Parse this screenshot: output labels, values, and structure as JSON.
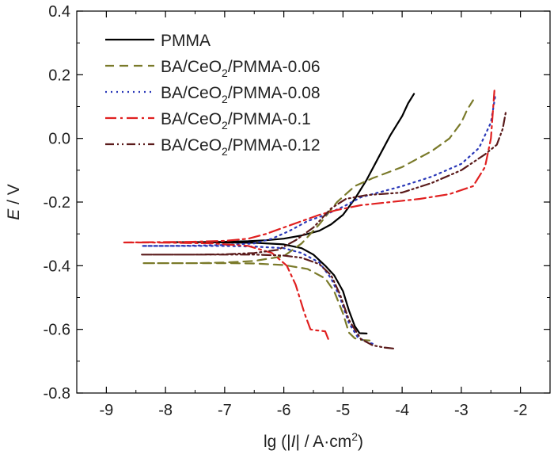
{
  "chart_data": {
    "type": "line",
    "title": "",
    "xlabel": "lg (|I| / A·cm²)",
    "ylabel": "E / V",
    "xlim": [
      -9.5,
      -1.5
    ],
    "ylim": [
      -0.8,
      0.4
    ],
    "x_ticks": [
      -9,
      -8,
      -7,
      -6,
      -5,
      -4,
      -3,
      -2
    ],
    "y_ticks": [
      0.4,
      0.2,
      0.0,
      -0.2,
      -0.4,
      -0.6,
      -0.8
    ],
    "x_tick_labels": [
      "-9",
      "-8",
      "-7",
      "-6",
      "-5",
      "-4",
      "-3",
      "-2"
    ],
    "y_tick_labels": [
      "0.4",
      "0.2",
      "0.0",
      "-0.2",
      "-0.4",
      "-0.6",
      "-0.8"
    ],
    "grid": false,
    "legend_position": "top-left",
    "series": [
      {
        "name": "PMMA",
        "color": "#000000",
        "dash": "solid",
        "points": [
          [
            -4.6,
            -0.613
          ],
          [
            -4.72,
            -0.612
          ],
          [
            -4.8,
            -0.59
          ],
          [
            -4.9,
            -0.54
          ],
          [
            -5.0,
            -0.48
          ],
          [
            -5.15,
            -0.43
          ],
          [
            -5.3,
            -0.4
          ],
          [
            -5.5,
            -0.365
          ],
          [
            -5.7,
            -0.345
          ],
          [
            -6.0,
            -0.333
          ],
          [
            -6.5,
            -0.328
          ],
          [
            -7.0,
            -0.327
          ],
          [
            -7.5,
            -0.326
          ],
          [
            -8.0,
            -0.326
          ],
          [
            -7.5,
            -0.326
          ],
          [
            -7.0,
            -0.325
          ],
          [
            -6.6,
            -0.323
          ],
          [
            -6.3,
            -0.32
          ],
          [
            -6.0,
            -0.315
          ],
          [
            -5.7,
            -0.305
          ],
          [
            -5.4,
            -0.29
          ],
          [
            -5.2,
            -0.27
          ],
          [
            -5.0,
            -0.24
          ],
          [
            -4.8,
            -0.19
          ],
          [
            -4.6,
            -0.13
          ],
          [
            -4.4,
            -0.06
          ],
          [
            -4.2,
            0.01
          ],
          [
            -4.0,
            0.07
          ],
          [
            -3.9,
            0.11
          ],
          [
            -3.8,
            0.14
          ]
        ]
      },
      {
        "name": "BA/CeO2/PMMA-0.06",
        "name_main": "BA/CeO",
        "name_sub": "2",
        "name_tail": "/PMMA-0.06",
        "color": "#7a7a2a",
        "dash": "11,7",
        "points": [
          [
            -4.55,
            -0.635
          ],
          [
            -4.7,
            -0.633
          ],
          [
            -4.8,
            -0.628
          ],
          [
            -4.9,
            -0.61
          ],
          [
            -5.0,
            -0.55
          ],
          [
            -5.15,
            -0.48
          ],
          [
            -5.3,
            -0.44
          ],
          [
            -5.6,
            -0.41
          ],
          [
            -6.0,
            -0.398
          ],
          [
            -6.5,
            -0.393
          ],
          [
            -7.0,
            -0.392
          ],
          [
            -7.5,
            -0.392
          ],
          [
            -8.0,
            -0.392
          ],
          [
            -8.4,
            -0.392
          ],
          [
            -8.0,
            -0.392
          ],
          [
            -7.5,
            -0.392
          ],
          [
            -7.0,
            -0.39
          ],
          [
            -6.5,
            -0.385
          ],
          [
            -6.0,
            -0.37
          ],
          [
            -5.7,
            -0.33
          ],
          [
            -5.4,
            -0.27
          ],
          [
            -5.1,
            -0.2
          ],
          [
            -4.8,
            -0.15
          ],
          [
            -4.5,
            -0.125
          ],
          [
            -4.0,
            -0.09
          ],
          [
            -3.5,
            -0.04
          ],
          [
            -3.2,
            0.0
          ],
          [
            -3.0,
            0.05
          ],
          [
            -2.9,
            0.09
          ],
          [
            -2.8,
            0.12
          ]
        ]
      },
      {
        "name": "BA/CeO2/PMMA-0.08",
        "name_main": "BA/CeO",
        "name_sub": "2",
        "name_tail": "/PMMA-0.08",
        "color": "#2a38b8",
        "dash": "2,5",
        "points": [
          [
            -4.5,
            -0.645
          ],
          [
            -4.6,
            -0.64
          ],
          [
            -4.75,
            -0.625
          ],
          [
            -4.9,
            -0.58
          ],
          [
            -5.05,
            -0.5
          ],
          [
            -5.2,
            -0.44
          ],
          [
            -5.4,
            -0.39
          ],
          [
            -5.7,
            -0.36
          ],
          [
            -6.0,
            -0.345
          ],
          [
            -6.5,
            -0.34
          ],
          [
            -7.0,
            -0.338
          ],
          [
            -7.5,
            -0.338
          ],
          [
            -8.0,
            -0.338
          ],
          [
            -8.4,
            -0.338
          ],
          [
            -8.0,
            -0.338
          ],
          [
            -7.5,
            -0.337
          ],
          [
            -7.0,
            -0.335
          ],
          [
            -6.5,
            -0.33
          ],
          [
            -6.2,
            -0.315
          ],
          [
            -5.9,
            -0.29
          ],
          [
            -5.6,
            -0.26
          ],
          [
            -5.3,
            -0.24
          ],
          [
            -5.0,
            -0.215
          ],
          [
            -4.7,
            -0.185
          ],
          [
            -4.0,
            -0.15
          ],
          [
            -3.5,
            -0.12
          ],
          [
            -3.0,
            -0.08
          ],
          [
            -2.7,
            -0.03
          ],
          [
            -2.5,
            0.05
          ],
          [
            -2.42,
            0.14
          ]
        ]
      },
      {
        "name": "BA/CeO2/PMMA-0.1",
        "name_main": "BA/CeO",
        "name_sub": "2",
        "name_tail": "/PMMA-0.1",
        "color": "#e02020",
        "dash": "14,5,3,5",
        "points": [
          [
            -5.25,
            -0.63
          ],
          [
            -5.3,
            -0.606
          ],
          [
            -5.45,
            -0.603
          ],
          [
            -5.55,
            -0.6
          ],
          [
            -5.65,
            -0.55
          ],
          [
            -5.8,
            -0.46
          ],
          [
            -5.95,
            -0.4
          ],
          [
            -6.2,
            -0.36
          ],
          [
            -6.6,
            -0.338
          ],
          [
            -7.2,
            -0.33
          ],
          [
            -7.8,
            -0.328
          ],
          [
            -8.3,
            -0.327
          ],
          [
            -8.7,
            -0.327
          ],
          [
            -8.2,
            -0.326
          ],
          [
            -7.6,
            -0.325
          ],
          [
            -7.0,
            -0.322
          ],
          [
            -6.6,
            -0.315
          ],
          [
            -6.3,
            -0.3
          ],
          [
            -6.0,
            -0.28
          ],
          [
            -5.7,
            -0.26
          ],
          [
            -5.4,
            -0.24
          ],
          [
            -5.1,
            -0.225
          ],
          [
            -4.7,
            -0.21
          ],
          [
            -4.2,
            -0.2
          ],
          [
            -3.7,
            -0.19
          ],
          [
            -3.2,
            -0.175
          ],
          [
            -2.8,
            -0.15
          ],
          [
            -2.6,
            -0.09
          ],
          [
            -2.5,
            0.0
          ],
          [
            -2.44,
            0.15
          ]
        ]
      },
      {
        "name": "BA/CeO2/PMMA-0.12",
        "name_main": "BA/CeO",
        "name_sub": "2",
        "name_tail": "/PMMA-0.12",
        "color": "#5a1a1a",
        "dash": "11,4,2,4,2,4",
        "points": [
          [
            -4.15,
            -0.66
          ],
          [
            -4.3,
            -0.657
          ],
          [
            -4.5,
            -0.65
          ],
          [
            -4.7,
            -0.63
          ],
          [
            -4.9,
            -0.57
          ],
          [
            -5.05,
            -0.49
          ],
          [
            -5.2,
            -0.43
          ],
          [
            -5.4,
            -0.395
          ],
          [
            -5.7,
            -0.375
          ],
          [
            -6.0,
            -0.368
          ],
          [
            -6.5,
            -0.365
          ],
          [
            -7.0,
            -0.365
          ],
          [
            -7.5,
            -0.365
          ],
          [
            -8.0,
            -0.365
          ],
          [
            -8.4,
            -0.365
          ],
          [
            -8.0,
            -0.365
          ],
          [
            -7.5,
            -0.365
          ],
          [
            -7.0,
            -0.364
          ],
          [
            -6.5,
            -0.36
          ],
          [
            -6.1,
            -0.35
          ],
          [
            -5.8,
            -0.32
          ],
          [
            -5.5,
            -0.28
          ],
          [
            -5.2,
            -0.22
          ],
          [
            -4.95,
            -0.19
          ],
          [
            -4.6,
            -0.178
          ],
          [
            -4.0,
            -0.17
          ],
          [
            -3.5,
            -0.14
          ],
          [
            -3.0,
            -0.1
          ],
          [
            -2.6,
            -0.05
          ],
          [
            -2.4,
            -0.02
          ],
          [
            -2.3,
            0.03
          ],
          [
            -2.25,
            0.08
          ]
        ]
      }
    ]
  }
}
